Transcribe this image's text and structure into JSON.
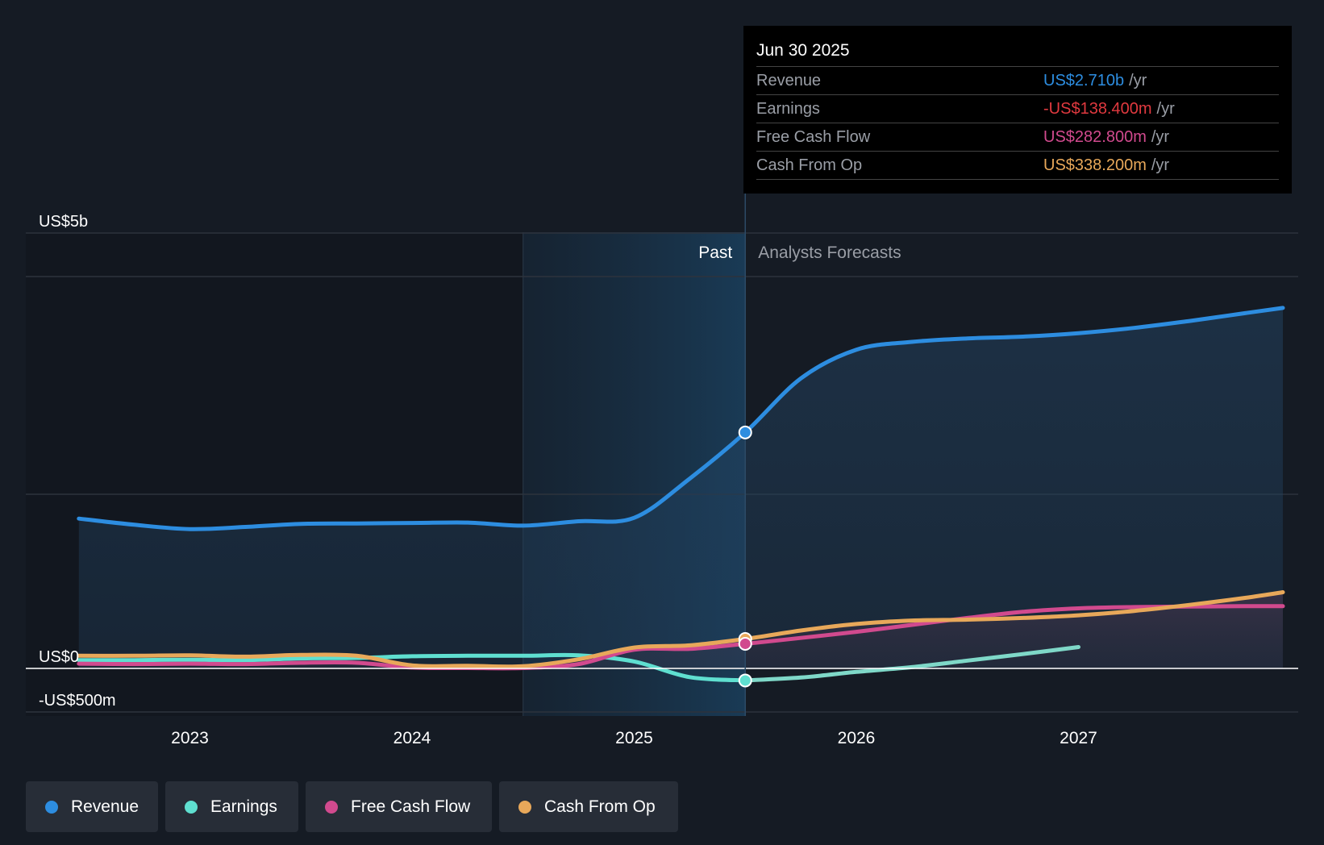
{
  "chart_data": {
    "type": "line",
    "x_unit": "year",
    "y_unit": "US$m",
    "ylim": [
      -500,
      5000
    ],
    "y_tick_labels": [
      {
        "value": 5000,
        "label": "US$5b"
      },
      {
        "value": 0,
        "label": "US$0"
      },
      {
        "value": -500,
        "label": "-US$500m"
      }
    ],
    "y_gridlines": [
      5000,
      4500,
      2000,
      0,
      -500
    ],
    "xlim": [
      2022.5,
      2027.92
    ],
    "x_ticks": [
      2023,
      2024,
      2025,
      2026,
      2027
    ],
    "x_tick_labels": [
      "2023",
      "2024",
      "2025",
      "2026",
      "2027"
    ],
    "past_label": "Past",
    "forecast_label": "Analysts Forecasts",
    "past_shade_start": 2024.5,
    "divider_x": 2025.5,
    "series": [
      {
        "name": "Revenue",
        "color": "#2d8de0",
        "points": [
          [
            2022.5,
            1720
          ],
          [
            2022.75,
            1650
          ],
          [
            2023.0,
            1600
          ],
          [
            2023.25,
            1625
          ],
          [
            2023.5,
            1660
          ],
          [
            2023.75,
            1665
          ],
          [
            2024.0,
            1670
          ],
          [
            2024.25,
            1675
          ],
          [
            2024.5,
            1640
          ],
          [
            2024.75,
            1690
          ],
          [
            2025.0,
            1730
          ],
          [
            2025.25,
            2180
          ],
          [
            2025.5,
            2710
          ],
          [
            2025.75,
            3330
          ],
          [
            2026.0,
            3660
          ],
          [
            2026.25,
            3750
          ],
          [
            2026.5,
            3790
          ],
          [
            2026.75,
            3810
          ],
          [
            2027.0,
            3850
          ],
          [
            2027.25,
            3910
          ],
          [
            2027.5,
            3990
          ],
          [
            2027.75,
            4080
          ],
          [
            2027.92,
            4140
          ]
        ]
      },
      {
        "name": "Earnings",
        "color": "#5fdfd0",
        "points": [
          [
            2022.5,
            95
          ],
          [
            2022.75,
            95
          ],
          [
            2023.0,
            100
          ],
          [
            2023.25,
            95
          ],
          [
            2023.5,
            115
          ],
          [
            2023.75,
            120
          ],
          [
            2024.0,
            140
          ],
          [
            2024.25,
            145
          ],
          [
            2024.5,
            145
          ],
          [
            2024.75,
            150
          ],
          [
            2025.0,
            80
          ],
          [
            2025.25,
            -100
          ],
          [
            2025.5,
            -138.4
          ],
          [
            2025.75,
            -105
          ],
          [
            2026.0,
            -40
          ],
          [
            2026.25,
            15
          ],
          [
            2026.5,
            90
          ],
          [
            2026.75,
            165
          ],
          [
            2027.0,
            245
          ]
        ]
      },
      {
        "name": "Free Cash Flow",
        "color": "#d14a8e",
        "points": [
          [
            2022.5,
            55
          ],
          [
            2022.75,
            50
          ],
          [
            2023.0,
            55
          ],
          [
            2023.25,
            50
          ],
          [
            2023.5,
            65
          ],
          [
            2023.75,
            65
          ],
          [
            2024.0,
            10
          ],
          [
            2024.25,
            5
          ],
          [
            2024.5,
            5
          ],
          [
            2024.75,
            50
          ],
          [
            2025.0,
            215
          ],
          [
            2025.25,
            225
          ],
          [
            2025.5,
            282.8
          ],
          [
            2025.75,
            350
          ],
          [
            2026.0,
            420
          ],
          [
            2026.25,
            500
          ],
          [
            2026.5,
            580
          ],
          [
            2026.75,
            650
          ],
          [
            2027.0,
            690
          ],
          [
            2027.25,
            705
          ],
          [
            2027.5,
            710
          ],
          [
            2027.75,
            715
          ],
          [
            2027.92,
            715
          ]
        ]
      },
      {
        "name": "Cash From Op",
        "color": "#e8a85a",
        "points": [
          [
            2022.5,
            145
          ],
          [
            2022.75,
            145
          ],
          [
            2023.0,
            150
          ],
          [
            2023.25,
            135
          ],
          [
            2023.5,
            155
          ],
          [
            2023.75,
            145
          ],
          [
            2024.0,
            35
          ],
          [
            2024.25,
            30
          ],
          [
            2024.5,
            25
          ],
          [
            2024.75,
            105
          ],
          [
            2025.0,
            240
          ],
          [
            2025.25,
            265
          ],
          [
            2025.5,
            338.2
          ],
          [
            2025.75,
            435
          ],
          [
            2026.0,
            510
          ],
          [
            2026.25,
            550
          ],
          [
            2026.5,
            560
          ],
          [
            2026.75,
            580
          ],
          [
            2027.0,
            610
          ],
          [
            2027.25,
            660
          ],
          [
            2027.5,
            730
          ],
          [
            2027.75,
            810
          ],
          [
            2027.92,
            875
          ]
        ]
      }
    ],
    "tooltip": {
      "date": "Jun 30 2025",
      "rows": [
        {
          "label": "Revenue",
          "value": "US$2.710b",
          "unit": "/yr",
          "color": "#2d8de0"
        },
        {
          "label": "Earnings",
          "value": "-US$138.400m",
          "unit": "/yr",
          "color": "#e0393f"
        },
        {
          "label": "Free Cash Flow",
          "value": "US$282.800m",
          "unit": "/yr",
          "color": "#d14a8e"
        },
        {
          "label": "Cash From Op",
          "value": "US$338.200m",
          "unit": "/yr",
          "color": "#e8a85a"
        }
      ]
    },
    "legend": [
      {
        "label": "Revenue",
        "color": "#2d8de0"
      },
      {
        "label": "Earnings",
        "color": "#5fdfd0"
      },
      {
        "label": "Free Cash Flow",
        "color": "#d14a8e"
      },
      {
        "label": "Cash From Op",
        "color": "#e8a85a"
      }
    ],
    "legend_position": "bottom-left",
    "grid": true
  }
}
